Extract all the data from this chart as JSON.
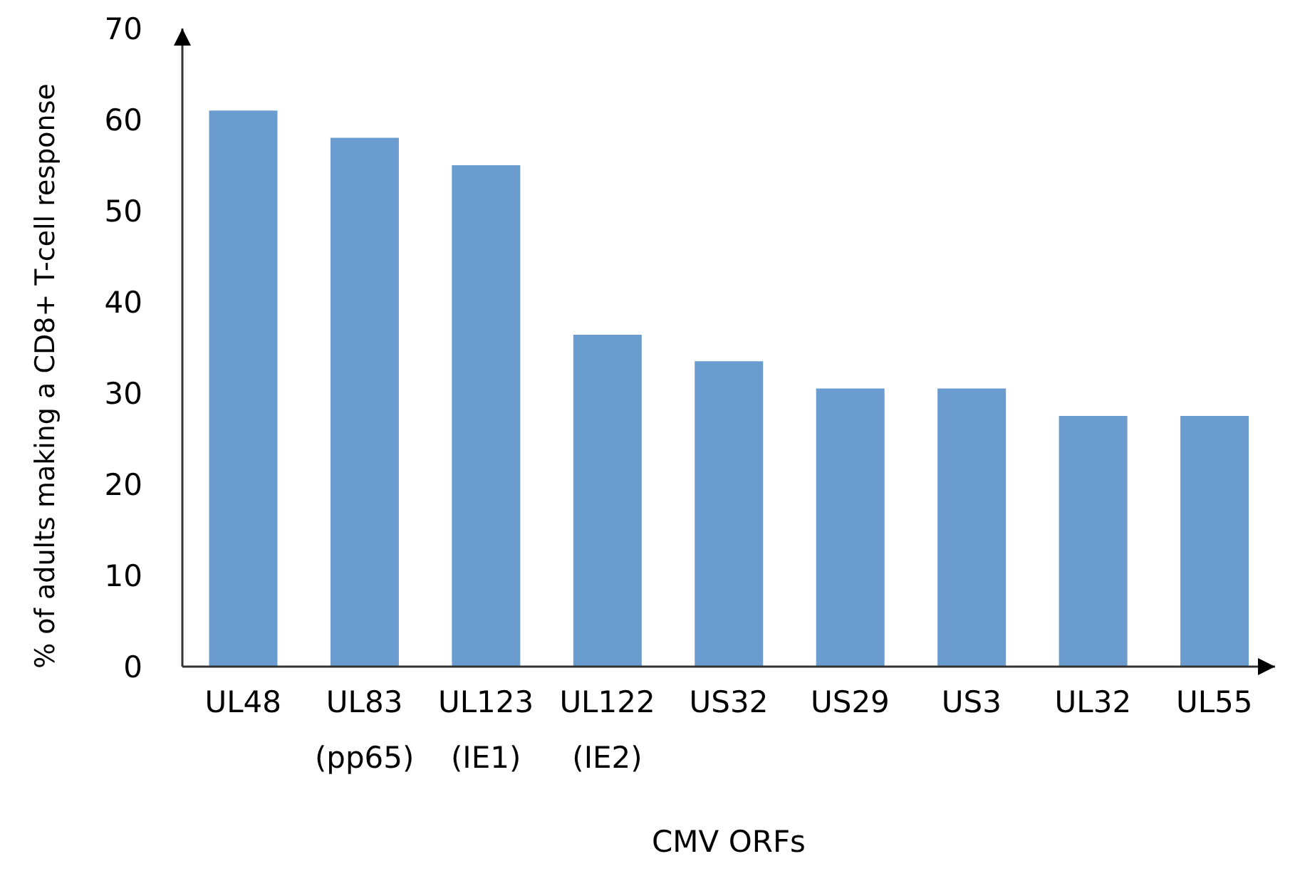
{
  "chart_data": {
    "type": "bar",
    "xlabel": "CMV ORFs",
    "ylabel": "% of adults making a CD8+ T-cell response",
    "categories": [
      "UL48",
      "UL83\n(pp65)",
      "UL123\n(IE1)",
      "UL122\n(IE2)",
      "US32",
      "US29",
      "US3",
      "UL32",
      "UL55"
    ],
    "values": [
      61,
      58,
      55,
      36.4,
      33.5,
      30.5,
      30.5,
      27.5,
      27.5
    ],
    "color": "#6a9cd0",
    "ylim": [
      0,
      70
    ],
    "yticks": [
      0,
      10,
      20,
      30,
      40,
      50,
      60,
      70
    ],
    "grid": false,
    "legend": false
  }
}
